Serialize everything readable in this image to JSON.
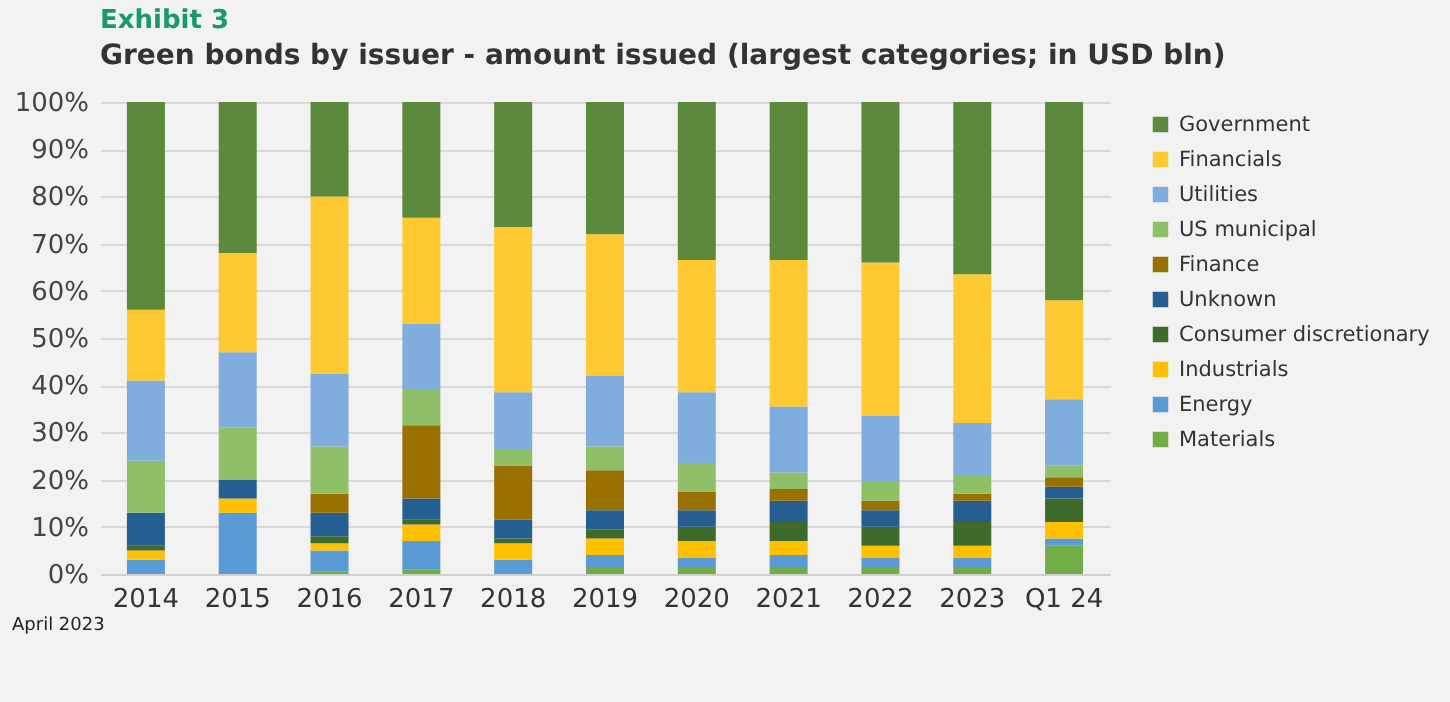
{
  "chart_data": {
    "type": "bar",
    "title": "Exhibit 3",
    "subtitle": "Green bonds by issuer - amount issued (largest categories; in USD bln)",
    "annotations": [
      "April 2023"
    ],
    "categories": [
      "2014",
      "2015",
      "2016",
      "2017",
      "2018",
      "2019",
      "2020",
      "2021",
      "2022",
      "2023",
      "Q1 24"
    ],
    "stacked": true,
    "ylim": [
      0,
      100
    ],
    "yticks": [
      {
        "value": 0,
        "label": "0%"
      },
      {
        "value": 10,
        "label": "10%"
      },
      {
        "value": 20,
        "label": "20%"
      },
      {
        "value": 30,
        "label": "30%"
      },
      {
        "value": 40,
        "label": "40%"
      },
      {
        "value": 50,
        "label": "50%"
      },
      {
        "value": 60,
        "label": "60%"
      },
      {
        "value": 70,
        "label": "70%"
      },
      {
        "value": 80,
        "label": "80%"
      },
      {
        "value": 90,
        "label": "90%"
      },
      {
        "value": 100,
        "label": "100%"
      }
    ],
    "grid": "y",
    "legend": "right",
    "series": [
      {
        "name": "Materials",
        "color": "#70ad47",
        "values": [
          0,
          0,
          0.5,
          1,
          0,
          1.5,
          1.5,
          1.5,
          1.5,
          1.5,
          6
        ]
      },
      {
        "name": "Energy",
        "color": "#5b9bd5",
        "values": [
          3,
          13,
          4.5,
          6,
          3,
          2.5,
          2,
          2.5,
          2,
          2,
          1.5
        ]
      },
      {
        "name": "Industrials",
        "color": "#ffc000",
        "values": [
          2,
          3,
          1.5,
          3.5,
          3.5,
          3.5,
          3.5,
          3,
          2.5,
          2.5,
          3.5
        ]
      },
      {
        "name": "Consumer discretionary",
        "color": "#3e6a2c",
        "values": [
          1,
          0,
          1.5,
          1,
          1,
          2,
          3,
          4,
          4,
          5,
          5
        ]
      },
      {
        "name": "Unknown",
        "color": "#255e91",
        "values": [
          7,
          4,
          5,
          4.5,
          4,
          4,
          3.5,
          4.5,
          3.5,
          4.5,
          2.5
        ]
      },
      {
        "name": "Finance",
        "color": "#9a7000",
        "values": [
          0,
          0,
          4,
          15.5,
          11.5,
          8.5,
          4,
          2.5,
          2,
          1.5,
          2
        ]
      },
      {
        "name": "US municipal",
        "color": "#8fc068",
        "values": [
          11,
          11,
          10,
          7.5,
          3.5,
          5,
          6,
          3.5,
          4,
          4,
          2.5
        ]
      },
      {
        "name": "Utilities",
        "color": "#7fadde",
        "values": [
          17,
          16,
          15.5,
          14,
          12,
          15,
          15,
          14,
          14,
          11,
          14
        ]
      },
      {
        "name": "Financials",
        "color": "#ffc932",
        "values": [
          15,
          21,
          37.5,
          22.5,
          35,
          30,
          28,
          31,
          32.5,
          31.5,
          21
        ]
      },
      {
        "name": "Government",
        "color": "#5b8a3c",
        "values": [
          44,
          32,
          20,
          24.5,
          26.5,
          28,
          33.5,
          33.5,
          34,
          36.5,
          42
        ]
      }
    ]
  }
}
